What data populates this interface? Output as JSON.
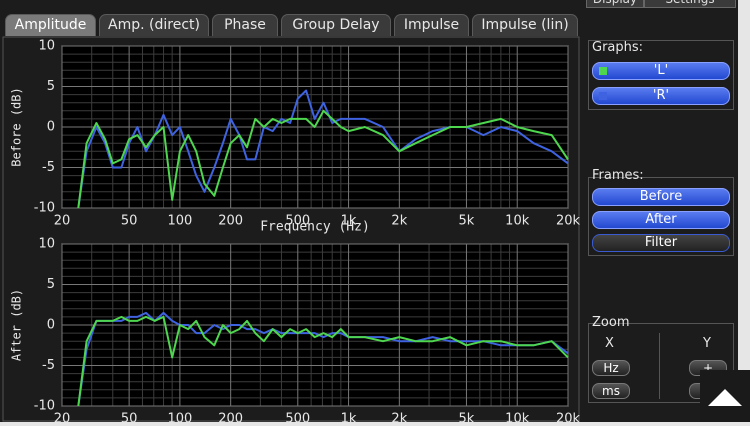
{
  "tabs": [
    "Amplitude",
    "Amp. (direct)",
    "Phase",
    "Group Delay",
    "Impulse",
    "Impulse (lin)"
  ],
  "side_tabs": [
    "Display",
    "Settings"
  ],
  "chart_data": [
    {
      "type": "line",
      "ylabel": "Before (dB)",
      "xlabel": "Frequency (Hz)",
      "log_x": true,
      "grid": true,
      "x": [
        25,
        28,
        32,
        36,
        40,
        45,
        50,
        56,
        63,
        71,
        80,
        90,
        100,
        112,
        125,
        140,
        160,
        180,
        200,
        225,
        250,
        280,
        315,
        355,
        400,
        450,
        500,
        560,
        630,
        710,
        800,
        900,
        1000,
        1250,
        1600,
        2000,
        2500,
        3150,
        4000,
        5000,
        6300,
        8000,
        10000,
        12500,
        16000,
        20000
      ],
      "series": [
        {
          "name": "L",
          "color": "#4fd64f",
          "values": [
            -10,
            -2,
            0.5,
            -1.5,
            -4.5,
            -4,
            -1.5,
            -1,
            -2.5,
            -1,
            0,
            -9,
            -3,
            -1,
            -3,
            -7,
            -8.5,
            -5,
            -2,
            -1,
            -2.5,
            1,
            0,
            1,
            0.5,
            1,
            1,
            1,
            0,
            2,
            1,
            0,
            -0.5,
            0,
            -1,
            -3,
            -2,
            -1,
            0,
            0,
            0.5,
            1,
            0,
            -0.5,
            -1,
            -4
          ]
        },
        {
          "name": "R",
          "color": "#3f63e0",
          "values": [
            -10,
            -3,
            0,
            -2,
            -5,
            -5,
            -2,
            0,
            -3,
            -1,
            1.5,
            -1,
            0,
            -3,
            -6,
            -8,
            -5,
            -2,
            1,
            -1,
            -4,
            -4,
            0,
            -0.5,
            1,
            0.5,
            3.5,
            4.5,
            1,
            3,
            0.5,
            1,
            1,
            1,
            0,
            -3,
            -1.5,
            -0.5,
            0,
            0,
            -1,
            0,
            -0.5,
            -2,
            -3,
            -4.5
          ]
        }
      ],
      "xlim": [
        20,
        20000
      ],
      "ylim": [
        -10,
        10
      ],
      "xticks": [
        20,
        50,
        100,
        200,
        500,
        {
          "value": 1000,
          "label": "1k"
        },
        {
          "value": 2000,
          "label": "2k"
        },
        {
          "value": 5000,
          "label": "5k"
        },
        {
          "value": 10000,
          "label": "10k"
        },
        {
          "value": 20000,
          "label": "20k"
        }
      ],
      "yticks": [
        -10,
        -5,
        0,
        5,
        10
      ],
      "xminor": [
        30,
        40,
        60,
        70,
        80,
        90,
        300,
        400,
        600,
        700,
        800,
        900,
        3000,
        4000,
        6000,
        7000,
        8000,
        9000
      ],
      "yminor": [
        -9,
        -8,
        -7,
        -6,
        -4,
        -3,
        -2,
        -1,
        1,
        2,
        3,
        4,
        6,
        7,
        8,
        9
      ]
    },
    {
      "type": "line",
      "ylabel": "After (dB)",
      "log_x": true,
      "grid": true,
      "x": [
        25,
        28,
        32,
        36,
        40,
        45,
        50,
        56,
        63,
        71,
        80,
        90,
        100,
        112,
        125,
        140,
        160,
        180,
        200,
        225,
        250,
        280,
        315,
        355,
        400,
        450,
        500,
        560,
        630,
        710,
        800,
        900,
        1000,
        1250,
        1600,
        2000,
        2500,
        3150,
        4000,
        5000,
        6300,
        8000,
        10000,
        12500,
        16000,
        20000
      ],
      "series": [
        {
          "name": "L",
          "color": "#4fd64f",
          "values": [
            -10,
            -2,
            0.5,
            0.5,
            0.5,
            1,
            0.5,
            0.5,
            1,
            0.5,
            1,
            -4,
            0,
            -0.5,
            0.5,
            -1.5,
            -2.5,
            0,
            -1,
            -0.5,
            0.5,
            -1,
            -2,
            -0.5,
            -1.5,
            -0.5,
            -1,
            -0.5,
            -1.5,
            -1,
            -1.5,
            -0.5,
            -1.5,
            -1.5,
            -2,
            -1.5,
            -2,
            -2,
            -1.5,
            -2.5,
            -2,
            -2,
            -2.5,
            -2.5,
            -2,
            -4
          ]
        },
        {
          "name": "R",
          "color": "#3f63e0",
          "values": [
            -10,
            -3,
            0.5,
            0.5,
            0.5,
            0.5,
            1,
            1,
            1.5,
            0.5,
            1.5,
            0.5,
            0,
            0,
            -1,
            -1,
            0,
            -0.5,
            0,
            0,
            -0.5,
            -0.5,
            -1,
            -0.5,
            -1,
            -1,
            -1,
            -1,
            -1,
            -1.5,
            -1,
            -1,
            -1.5,
            -1.5,
            -1.5,
            -2,
            -2,
            -1.5,
            -2,
            -2,
            -2,
            -2.5,
            -2.5,
            -2.5,
            -2,
            -3.5
          ]
        }
      ],
      "xlim": [
        20,
        20000
      ],
      "ylim": [
        -10,
        10
      ],
      "xticks": [
        20,
        50,
        100,
        200,
        500,
        {
          "value": 1000,
          "label": "1k"
        },
        {
          "value": 2000,
          "label": "2k"
        },
        {
          "value": 5000,
          "label": "5k"
        },
        {
          "value": 10000,
          "label": "10k"
        },
        {
          "value": 20000,
          "label": "20k"
        }
      ],
      "yticks": [
        -10,
        -5,
        0,
        5,
        10
      ],
      "xminor": [
        30,
        40,
        60,
        70,
        80,
        90,
        300,
        400,
        600,
        700,
        800,
        900,
        3000,
        4000,
        6000,
        7000,
        8000,
        9000
      ],
      "yminor": [
        -9,
        -8,
        -7,
        -6,
        -4,
        -3,
        -2,
        -1,
        1,
        2,
        3,
        4,
        6,
        7,
        8,
        9
      ]
    }
  ],
  "panel": {
    "graphs": {
      "label": "Graphs:",
      "items": [
        "'L'",
        "'R'"
      ]
    },
    "frames": {
      "label": "Frames:",
      "items": [
        "Before",
        "After",
        "Filter"
      ]
    },
    "zoom": {
      "label": "Zoom",
      "x": "X",
      "y": "Y",
      "buttons": [
        "Hz",
        "ms",
        "+",
        "-"
      ]
    }
  }
}
